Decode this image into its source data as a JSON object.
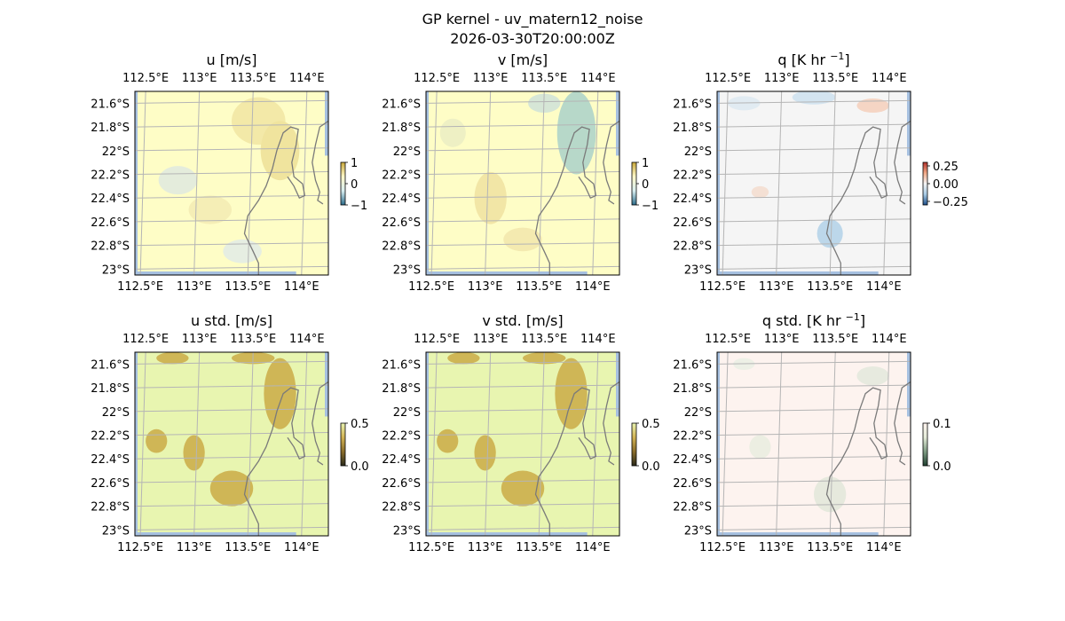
{
  "figure": {
    "suptitle": "GP kernel - uv_matern12_noise",
    "subtitle": "2026-03-30T20:00:00Z"
  },
  "chart_data": [
    {
      "type": "heatmap",
      "id": "u",
      "title": "u [m/s]",
      "x_ticks": [
        "112.5°E",
        "113°E",
        "113.5°E",
        "114°E"
      ],
      "y_ticks": [
        "21.6°S",
        "21.8°S",
        "22°S",
        "22.2°S",
        "22.4°S",
        "22.6°S",
        "22.8°S",
        "23°S"
      ],
      "colorbar": {
        "ticks": [
          "1",
          "0",
          "−1"
        ],
        "range": [
          -1,
          1
        ],
        "colors": [
          "#2b6b8a",
          "#d8eef0",
          "#fdf7c8",
          "#c9a83a"
        ]
      },
      "field_color": "#fefdc6",
      "patches": [
        {
          "lon": 113.55,
          "lat": -21.75,
          "rlon": 0.25,
          "rlat": 0.2,
          "color": "#f3e9a8"
        },
        {
          "lon": 113.75,
          "lat": -22.0,
          "rlon": 0.18,
          "rlat": 0.25,
          "color": "#f0e49e"
        },
        {
          "lon": 112.8,
          "lat": -22.25,
          "rlon": 0.18,
          "rlat": 0.12,
          "color": "#e4ecdc"
        },
        {
          "lon": 113.4,
          "lat": -22.85,
          "rlon": 0.18,
          "rlat": 0.1,
          "color": "#e6eee2"
        },
        {
          "lon": 113.1,
          "lat": -22.5,
          "rlon": 0.2,
          "rlat": 0.12,
          "color": "#f5eeb6"
        }
      ]
    },
    {
      "type": "heatmap",
      "id": "v",
      "title": "v [m/s]",
      "x_ticks": [
        "112.5°E",
        "113°E",
        "113.5°E",
        "114°E"
      ],
      "y_ticks": [
        "21.6°S",
        "21.8°S",
        "22°S",
        "22.2°S",
        "22.4°S",
        "22.6°S",
        "22.8°S",
        "23°S"
      ],
      "colorbar": {
        "ticks": [
          "1",
          "0",
          "−1"
        ],
        "range": [
          -1,
          1
        ],
        "colors": [
          "#2b6b8a",
          "#d8eef0",
          "#fdf7c8",
          "#c9a83a"
        ]
      },
      "field_color": "#fefdc6",
      "patches": [
        {
          "lon": 113.8,
          "lat": -21.85,
          "rlon": 0.18,
          "rlat": 0.35,
          "color": "#b7d8c9"
        },
        {
          "lon": 113.5,
          "lat": -21.6,
          "rlon": 0.15,
          "rlat": 0.08,
          "color": "#d6e6d6"
        },
        {
          "lon": 113.0,
          "lat": -22.4,
          "rlon": 0.15,
          "rlat": 0.22,
          "color": "#f2e6a6"
        },
        {
          "lon": 113.3,
          "lat": -22.75,
          "rlon": 0.18,
          "rlat": 0.1,
          "color": "#f4eab0"
        },
        {
          "lon": 112.65,
          "lat": -21.85,
          "rlon": 0.12,
          "rlat": 0.12,
          "color": "#eef0c4"
        }
      ]
    },
    {
      "type": "heatmap",
      "id": "q",
      "title": "q [K hr ",
      "title_sup": "−1",
      "title_end": "]",
      "x_ticks": [
        "112.5°E",
        "113°E",
        "113.5°E",
        "114°E"
      ],
      "y_ticks": [
        "21.6°S",
        "21.8°S",
        "22°S",
        "22.2°S",
        "22.4°S",
        "22.6°S",
        "22.8°S",
        "23°S"
      ],
      "colorbar": {
        "ticks": [
          "0.25",
          "0.00",
          "−0.25"
        ],
        "range": [
          -0.3,
          0.3
        ],
        "colors": [
          "#1d4f8a",
          "#a8cbe5",
          "#f4f4f4",
          "#f1a986",
          "#b2302b"
        ]
      },
      "field_color": "#f5f5f5",
      "patches": [
        {
          "lon": 113.45,
          "lat": -22.7,
          "rlon": 0.12,
          "rlat": 0.12,
          "color": "#bcd7ea"
        },
        {
          "lon": 113.3,
          "lat": -21.55,
          "rlon": 0.2,
          "rlat": 0.06,
          "color": "#d3e4f0"
        },
        {
          "lon": 113.85,
          "lat": -21.62,
          "rlon": 0.15,
          "rlat": 0.06,
          "color": "#f5d5c4"
        },
        {
          "lon": 112.8,
          "lat": -22.35,
          "rlon": 0.08,
          "rlat": 0.05,
          "color": "#f4e0d4"
        },
        {
          "lon": 112.65,
          "lat": -21.6,
          "rlon": 0.15,
          "rlat": 0.06,
          "color": "#e1ebf2"
        }
      ]
    },
    {
      "type": "heatmap",
      "id": "u_std",
      "title": "u std. [m/s]",
      "x_ticks": [
        "112.5°E",
        "113°E",
        "113.5°E",
        "114°E"
      ],
      "y_ticks": [
        "21.6°S",
        "21.8°S",
        "22°S",
        "22.2°S",
        "22.4°S",
        "22.6°S",
        "22.8°S",
        "23°S"
      ],
      "colorbar": {
        "ticks": [
          "0.5",
          "0.0"
        ],
        "range": [
          0,
          0.5
        ],
        "colors": [
          "#2a2a1a",
          "#8a6d2b",
          "#d2b354",
          "#e8f3b0"
        ]
      },
      "field_color": "#e8f5b0",
      "patches": [
        {
          "lon": 113.75,
          "lat": -21.85,
          "rlon": 0.15,
          "rlat": 0.3,
          "color": "#cfb656"
        },
        {
          "lon": 113.5,
          "lat": -21.55,
          "rlon": 0.2,
          "rlat": 0.05,
          "color": "#cfb656"
        },
        {
          "lon": 112.95,
          "lat": -22.35,
          "rlon": 0.1,
          "rlat": 0.15,
          "color": "#cfb656"
        },
        {
          "lon": 113.3,
          "lat": -22.65,
          "rlon": 0.2,
          "rlat": 0.15,
          "color": "#cfb656"
        },
        {
          "lon": 112.6,
          "lat": -22.25,
          "rlon": 0.1,
          "rlat": 0.1,
          "color": "#cfb656"
        },
        {
          "lon": 112.75,
          "lat": -21.55,
          "rlon": 0.15,
          "rlat": 0.05,
          "color": "#cfb656"
        }
      ]
    },
    {
      "type": "heatmap",
      "id": "v_std",
      "title": "v std. [m/s]",
      "x_ticks": [
        "112.5°E",
        "113°E",
        "113.5°E",
        "114°E"
      ],
      "y_ticks": [
        "21.6°S",
        "21.8°S",
        "22°S",
        "22.2°S",
        "22.4°S",
        "22.6°S",
        "22.8°S",
        "23°S"
      ],
      "colorbar": {
        "ticks": [
          "0.5",
          "0.0"
        ],
        "range": [
          0,
          0.5
        ],
        "colors": [
          "#2a2a1a",
          "#8a6d2b",
          "#d2b354",
          "#e8f3b0"
        ]
      },
      "field_color": "#e8f5b0",
      "patches": [
        {
          "lon": 113.75,
          "lat": -21.85,
          "rlon": 0.15,
          "rlat": 0.3,
          "color": "#cfb656"
        },
        {
          "lon": 113.5,
          "lat": -21.55,
          "rlon": 0.2,
          "rlat": 0.05,
          "color": "#cfb656"
        },
        {
          "lon": 112.95,
          "lat": -22.35,
          "rlon": 0.1,
          "rlat": 0.15,
          "color": "#cfb656"
        },
        {
          "lon": 113.3,
          "lat": -22.65,
          "rlon": 0.2,
          "rlat": 0.15,
          "color": "#cfb656"
        },
        {
          "lon": 112.6,
          "lat": -22.25,
          "rlon": 0.1,
          "rlat": 0.1,
          "color": "#cfb656"
        },
        {
          "lon": 112.75,
          "lat": -21.55,
          "rlon": 0.15,
          "rlat": 0.05,
          "color": "#cfb656"
        }
      ]
    },
    {
      "type": "heatmap",
      "id": "q_std",
      "title": "q std. [K hr ",
      "title_sup": "−1",
      "title_end": "]",
      "x_ticks": [
        "112.5°E",
        "113°E",
        "113.5°E",
        "114°E"
      ],
      "y_ticks": [
        "21.6°S",
        "21.8°S",
        "22°S",
        "22.2°S",
        "22.4°S",
        "22.6°S",
        "22.8°S",
        "23°S"
      ],
      "colorbar": {
        "ticks": [
          "0.1",
          "0.0"
        ],
        "range": [
          0,
          0.1
        ],
        "colors": [
          "#1f3f30",
          "#7f9c84",
          "#e5ecd9",
          "#fdf3ee"
        ]
      },
      "field_color": "#fdf3ef",
      "patches": [
        {
          "lon": 113.45,
          "lat": -22.7,
          "rlon": 0.15,
          "rlat": 0.15,
          "color": "#e6e9dd"
        },
        {
          "lon": 112.8,
          "lat": -22.3,
          "rlon": 0.1,
          "rlat": 0.1,
          "color": "#eceee2"
        },
        {
          "lon": 113.85,
          "lat": -21.7,
          "rlon": 0.15,
          "rlat": 0.08,
          "color": "#e7eadf"
        },
        {
          "lon": 112.65,
          "lat": -21.6,
          "rlon": 0.1,
          "rlat": 0.05,
          "color": "#edf0e6"
        }
      ]
    }
  ]
}
